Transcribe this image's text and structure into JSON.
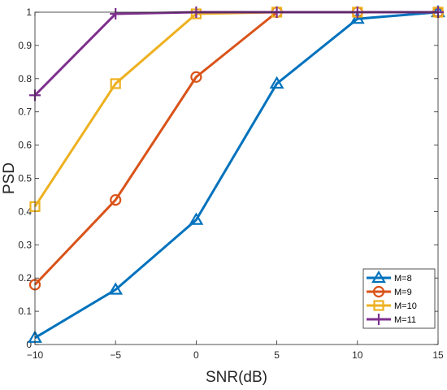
{
  "chart_data": {
    "type": "line",
    "xlabel": "SNR(dB)",
    "ylabel": "PSD",
    "x": [
      -10,
      -5,
      0,
      5,
      10,
      15
    ],
    "xlim": [
      -10,
      15
    ],
    "ylim": [
      0,
      1
    ],
    "xticks": [
      "−10",
      "−5",
      "0",
      "5",
      "10",
      "15"
    ],
    "yticks": [
      "0",
      "0.1",
      "0.2",
      "0.3",
      "0.4",
      "0.5",
      "0.6",
      "0.7",
      "0.8",
      "0.9",
      "1"
    ],
    "grid": false,
    "legend_position": "bottom-right",
    "series": [
      {
        "name": "M=8",
        "values": [
          0.02,
          0.165,
          0.375,
          0.785,
          0.98,
          1.0
        ],
        "color": "#0072BD",
        "marker": "triangle"
      },
      {
        "name": "M=9",
        "values": [
          0.18,
          0.435,
          0.805,
          1.0,
          1.0,
          1.0
        ],
        "color": "#D95319",
        "marker": "circle"
      },
      {
        "name": "M=10",
        "values": [
          0.415,
          0.785,
          0.995,
          1.0,
          1.0,
          1.0
        ],
        "color": "#EDB120",
        "marker": "square"
      },
      {
        "name": "M=11",
        "values": [
          0.75,
          0.995,
          1.0,
          1.0,
          1.0,
          1.0
        ],
        "color": "#7E2F8E",
        "marker": "plus"
      }
    ]
  }
}
